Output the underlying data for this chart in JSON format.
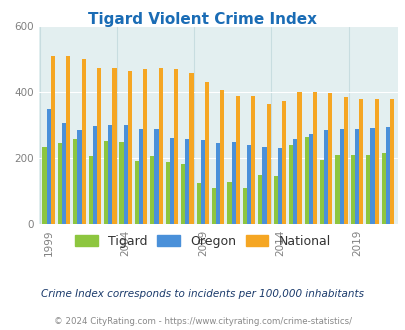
{
  "title": "Tigard Violent Crime Index",
  "years": [
    1999,
    2000,
    2001,
    2002,
    2003,
    2004,
    2005,
    2006,
    2007,
    2008,
    2009,
    2010,
    2011,
    2012,
    2013,
    2014,
    2015,
    2016,
    2017,
    2018,
    2019,
    2020,
    2021
  ],
  "tigard": [
    235,
    248,
    260,
    207,
    253,
    250,
    193,
    208,
    188,
    183,
    125,
    110,
    130,
    110,
    150,
    148,
    240,
    265,
    195,
    210,
    210,
    210,
    215
  ],
  "oregon": [
    350,
    307,
    285,
    298,
    300,
    300,
    290,
    288,
    262,
    258,
    255,
    248,
    250,
    242,
    235,
    233,
    260,
    275,
    285,
    290,
    290,
    292,
    295
  ],
  "national": [
    510,
    510,
    500,
    475,
    475,
    465,
    470,
    475,
    470,
    460,
    432,
    407,
    390,
    388,
    365,
    375,
    400,
    400,
    398,
    385,
    380,
    380,
    380
  ],
  "tigard_color": "#8dc63f",
  "oregon_color": "#4a90d9",
  "national_color": "#f5a623",
  "bg_color": "#e3eff0",
  "ylim": [
    0,
    600
  ],
  "yticks": [
    0,
    200,
    400,
    600
  ],
  "subtitle": "Crime Index corresponds to incidents per 100,000 inhabitants",
  "footer": "© 2024 CityRating.com - https://www.cityrating.com/crime-statistics/",
  "legend_labels": [
    "Tigard",
    "Oregon",
    "National"
  ],
  "bar_width": 0.27,
  "tick_years": [
    1999,
    2004,
    2009,
    2014,
    2019
  ],
  "title_color": "#1a6cb5",
  "subtitle_color": "#1a3a6b",
  "footer_color": "#888888",
  "grid_color": "#c8dde0",
  "vline_color": "#c8dde0"
}
